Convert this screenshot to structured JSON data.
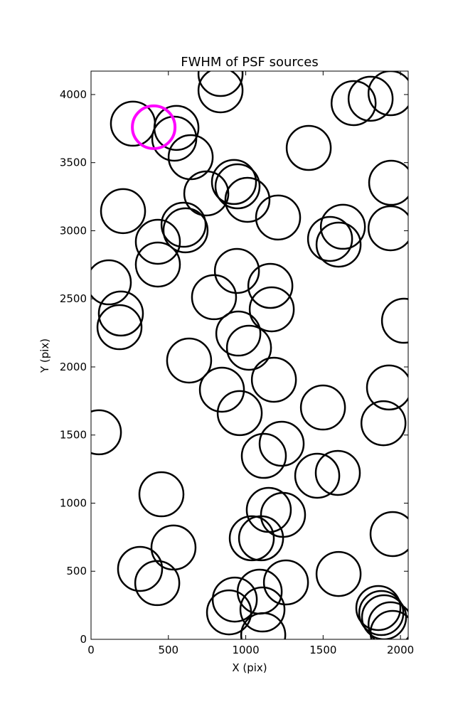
{
  "chart_data": {
    "type": "scatter",
    "title": "FWHM of PSF sources",
    "x_label": "X (pix)",
    "y_label": "Y (pix)",
    "xlim": [
      0,
      2050
    ],
    "ylim": [
      0,
      4172
    ],
    "xticks": [
      0,
      500,
      1000,
      1500,
      2000
    ],
    "yticks": [
      0,
      500,
      1000,
      1500,
      2000,
      2500,
      3000,
      3500,
      4000
    ],
    "series": [
      {
        "color": "#000000",
        "x": [
          837,
          837,
          271,
          552,
          538,
          644,
          1697,
          1807,
          1936,
          1407,
          1940,
          924,
          947,
          1011,
          745,
          207,
          1209,
          598,
          611,
          432,
          432,
          1628,
          1545,
          1600,
          1936,
          115,
          943,
          1159,
          1168,
          795,
          193,
          184,
          952,
          1021,
          2023,
          634,
          846,
          1182,
          1926,
          1499,
          961,
          1890,
          51,
          1232,
          1117,
          1462,
          1595,
          455,
          1149,
          1241,
          1949,
          1039,
          1099,
          533,
          317,
          428,
          1260,
          1600,
          929,
          1090,
          892,
          1108,
          1113,
          1857,
          1876,
          1894,
          1936,
          1949
        ],
        "y": [
          4151,
          4031,
          3786,
          3755,
          3676,
          3540,
          3937,
          3969,
          4010,
          3608,
          3352,
          3358,
          3326,
          3227,
          3274,
          3144,
          3097,
          3044,
          3003,
          2919,
          2752,
          3029,
          2940,
          2898,
          3018,
          2621,
          2705,
          2595,
          2423,
          2512,
          2392,
          2292,
          2245,
          2141,
          2339,
          2047,
          1833,
          1906,
          1849,
          1702,
          1661,
          1587,
          1520,
          1436,
          1347,
          1201,
          1222,
          1065,
          950,
          914,
          773,
          742,
          742,
          674,
          517,
          413,
          418,
          480,
          292,
          350,
          198,
          219,
          31,
          230,
          193,
          162,
          110,
          47
        ]
      },
      {
        "color": "#ff00ff",
        "x": [
          405
        ],
        "y": [
          3760
        ]
      }
    ]
  }
}
